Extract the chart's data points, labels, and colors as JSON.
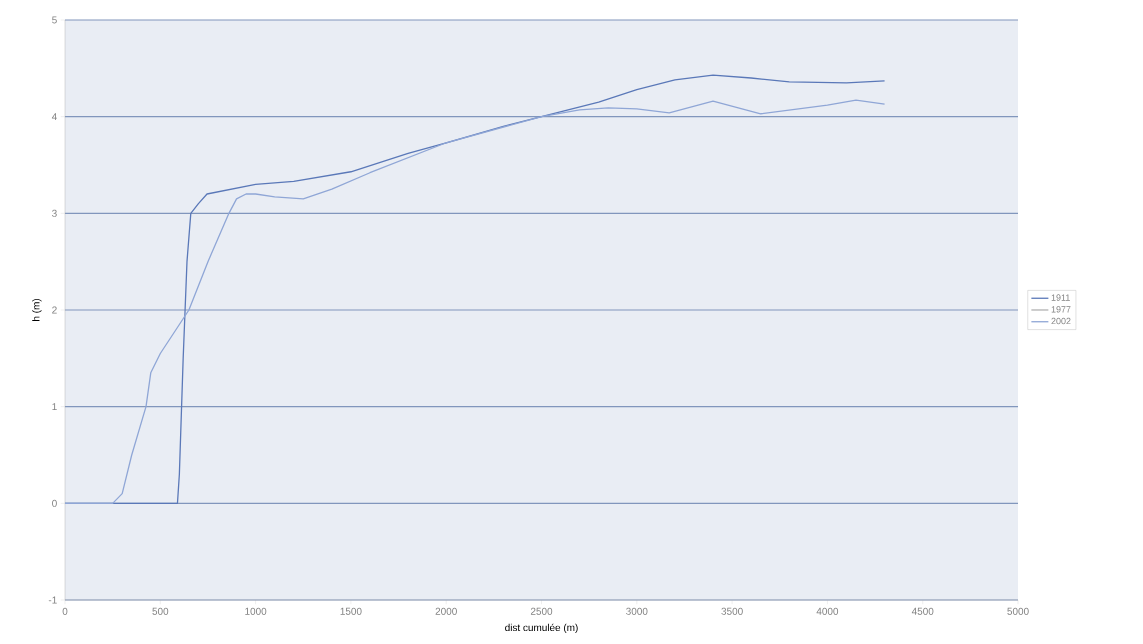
{
  "chart_data": {
    "type": "line",
    "xlabel": "dist cumulée (m)",
    "ylabel": "h (m)",
    "xlim": [
      0,
      5000
    ],
    "xticks": [
      0,
      500,
      1000,
      1500,
      2000,
      2500,
      3000,
      3500,
      4000,
      4500,
      5000
    ],
    "ylim": [
      -1,
      5
    ],
    "yticks": [
      -1,
      0,
      1,
      2,
      3,
      4,
      5
    ],
    "grid": "y",
    "legend": "right",
    "marker": "none",
    "line_style": "solid",
    "series": [
      {
        "name": "1911",
        "color": "#5a78b8",
        "x": [
          0,
          300,
          590,
          600,
          620,
          640,
          660,
          700,
          745,
          1000,
          1200,
          1500,
          1800,
          2000,
          2300,
          2500,
          2800,
          3000,
          3200,
          3400,
          3600,
          3800,
          4100,
          4300
        ],
        "values": [
          0,
          0,
          0,
          0.3,
          1.5,
          2.5,
          3.0,
          3.1,
          3.2,
          3.3,
          3.33,
          3.43,
          3.62,
          3.73,
          3.9,
          4.0,
          4.15,
          4.28,
          4.38,
          4.43,
          4.4,
          4.36,
          4.35,
          4.37
        ]
      },
      {
        "name": "1977"
      },
      {
        "name": "2002",
        "color": "#8fa6d6",
        "x": [
          0,
          250,
          300,
          350,
          425,
          450,
          500,
          600,
          650,
          750,
          860,
          900,
          950,
          1000,
          1100,
          1250,
          1400,
          1600,
          2000,
          2500,
          2700,
          2850,
          3000,
          3170,
          3400,
          3650,
          4000,
          4150,
          4300
        ],
        "values": [
          0,
          0,
          0.1,
          0.5,
          1.0,
          1.35,
          1.55,
          1.85,
          2.0,
          2.5,
          3.0,
          3.15,
          3.2,
          3.2,
          3.17,
          3.15,
          3.25,
          3.42,
          3.73,
          4.0,
          4.07,
          4.09,
          4.08,
          4.04,
          4.16,
          4.03,
          4.12,
          4.17,
          4.13
        ]
      }
    ]
  }
}
